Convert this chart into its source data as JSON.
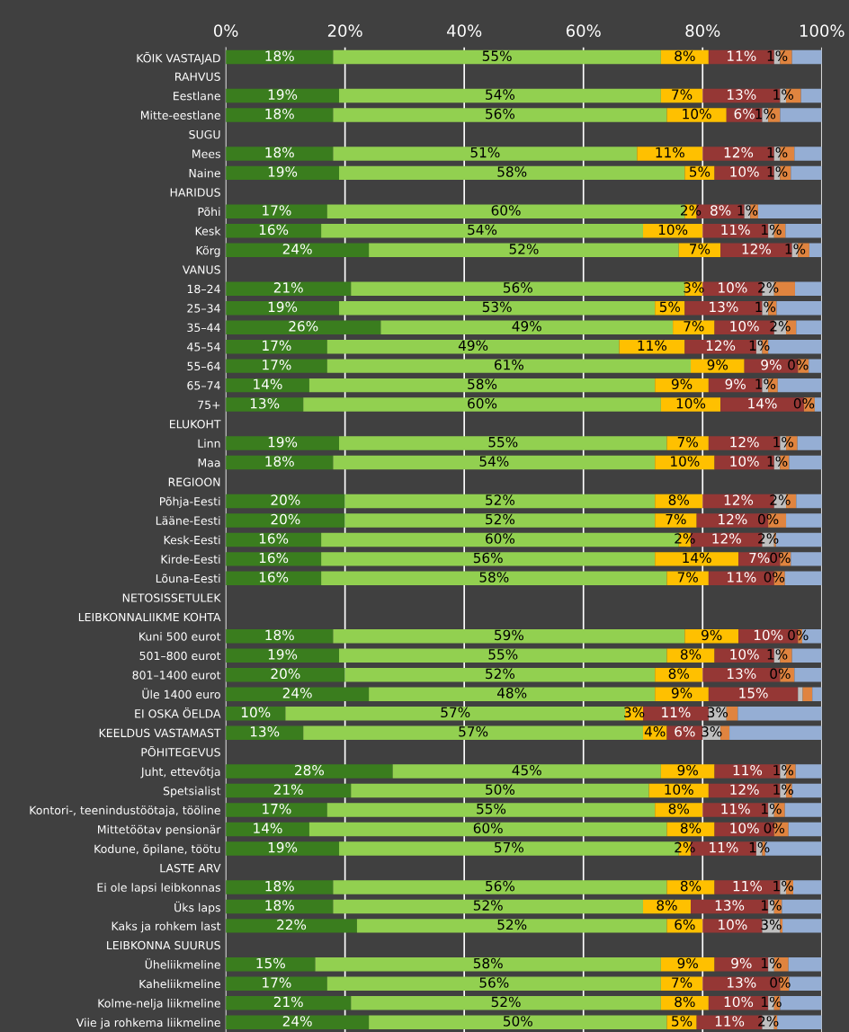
{
  "chart_data": {
    "type": "bar",
    "orientation": "horizontal",
    "stacked": true,
    "grid": "x",
    "categories": [
      "KÕIK VASTAJAD",
      "RAHVUS",
      "Eestlane",
      "Mitte-eestlane",
      "SUGU",
      "Mees",
      "Naine",
      "HARIDUS",
      "Põhi",
      "Kesk",
      "Kõrg",
      "VANUS",
      "18–24",
      "25–34",
      "35–44",
      "45–54",
      "55–64",
      "65–74",
      "75+",
      "ELUKOHT",
      "Linn",
      "Maa",
      "REGIOON",
      "Põhja-Eesti",
      "Lääne-Eesti",
      "Kesk-Eesti",
      "Kirde-Eesti",
      "Lõuna-Eesti",
      "NETOSISSETULEK",
      "LEIBKONNALIIKME KOHTA",
      "Kuni 500 eurot",
      "501–800 eurot",
      "801–1400 eurot",
      "Üle 1400 euro",
      "EI OSKA ÖELDA",
      "KEELDUS VASTAMAST",
      "PÕHITEGEVUS",
      "Juht, ettevõtja",
      "Spetsialist",
      "Kontori-, teenindustöötaja, tööline",
      "Mittetöötav pensionär",
      "Kodune, õpilane, töötu",
      "LASTE ARV",
      "Ei ole lapsi leibkonnas",
      "Üks laps",
      "Kaks ja rohkem last",
      "LEIBKONNA SUURUS",
      "Üheliikmeline",
      "Kaheliikmeline",
      "Kolme-nelja liikmeline",
      "Viie ja rohkema liikmeline"
    ],
    "xlim": [
      0,
      100
    ],
    "xticks": [
      {
        "value": 0,
        "label": "0%"
      },
      {
        "value": 20,
        "label": "20%"
      },
      {
        "value": 40,
        "label": "40%"
      },
      {
        "value": 60,
        "label": "60%"
      },
      {
        "value": 80,
        "label": "80%"
      },
      {
        "value": 100,
        "label": "100%"
      }
    ],
    "series": [
      {
        "color": "#3a7d1e",
        "values": [
          18,
          null,
          19,
          18,
          null,
          18,
          19,
          null,
          17,
          16,
          24,
          null,
          21,
          19,
          26,
          17,
          17,
          14,
          13,
          null,
          19,
          18,
          null,
          20,
          20,
          16,
          16,
          16,
          null,
          null,
          18,
          19,
          20,
          24,
          10,
          13,
          null,
          28,
          21,
          17,
          14,
          19,
          null,
          18,
          18,
          22,
          null,
          15,
          17,
          21,
          24
        ],
        "value_labels": [
          "18%",
          null,
          "19%",
          "18%",
          null,
          "18%",
          "19%",
          null,
          "17%",
          "16%",
          "24%",
          null,
          "21%",
          "19%",
          "26%",
          "17%",
          "17%",
          "14%",
          "13%",
          null,
          "19%",
          "18%",
          null,
          "20%",
          "20%",
          "16%",
          "16%",
          "16%",
          null,
          null,
          "18%",
          "19%",
          "20%",
          "24%",
          "10%",
          "13%",
          null,
          "28%",
          "21%",
          "17%",
          "14%",
          "19%",
          null,
          "18%",
          "18%",
          "22%",
          null,
          "15%",
          "17%",
          "21%",
          "24%"
        ]
      },
      {
        "color": "#92d050",
        "values": [
          55,
          null,
          54,
          56,
          null,
          51,
          58,
          null,
          60,
          54,
          52,
          null,
          56,
          53,
          49,
          49,
          61,
          58,
          60,
          null,
          55,
          54,
          null,
          52,
          52,
          60,
          56,
          58,
          null,
          null,
          59,
          55,
          52,
          48,
          57,
          57,
          null,
          45,
          50,
          55,
          60,
          57,
          null,
          56,
          52,
          52,
          null,
          58,
          56,
          52,
          50
        ],
        "value_labels": [
          "55%",
          null,
          "54%",
          "56%",
          null,
          "51%",
          "58%",
          null,
          "60%",
          "54%",
          "52%",
          null,
          "56%",
          "53%",
          "49%",
          "49%",
          "61%",
          "58%",
          "60%",
          null,
          "55%",
          "54%",
          null,
          "52%",
          "52%",
          "60%",
          "56%",
          "58%",
          null,
          null,
          "59%",
          "55%",
          "52%",
          "48%",
          "57%",
          "57%",
          null,
          "45%",
          "50%",
          "55%",
          "60%",
          "57%",
          null,
          "56%",
          "52%",
          "52%",
          null,
          "58%",
          "56%",
          "52%",
          "50%"
        ]
      },
      {
        "color": "#ffc000",
        "values": [
          8,
          null,
          7,
          10,
          null,
          11,
          5,
          null,
          2,
          10,
          7,
          null,
          3,
          5,
          7,
          11,
          9,
          9,
          10,
          null,
          7,
          10,
          null,
          8,
          7,
          2,
          14,
          7,
          null,
          null,
          9,
          8,
          8,
          9,
          3,
          4,
          null,
          9,
          10,
          8,
          8,
          2,
          null,
          8,
          8,
          6,
          null,
          9,
          7,
          8,
          5
        ],
        "value_labels": [
          "8%",
          null,
          "7%",
          "10%",
          null,
          "11%",
          "5%",
          null,
          "2%",
          "10%",
          "7%",
          null,
          "3%",
          "5%",
          "7%",
          "11%",
          "9%",
          "9%",
          "10%",
          null,
          "7%",
          "10%",
          null,
          "8%",
          "7%",
          "2%",
          "14%",
          "7%",
          null,
          null,
          "9%",
          "8%",
          "8%",
          "9%",
          "3%",
          "4%",
          null,
          "9%",
          "10%",
          "8%",
          "8%",
          "2%",
          null,
          "8%",
          "8%",
          "6%",
          null,
          "9%",
          "7%",
          "8%",
          "5%"
        ]
      },
      {
        "color": "#953735",
        "values": [
          11,
          null,
          13,
          6,
          null,
          12,
          10,
          null,
          8,
          11,
          12,
          null,
          10,
          13,
          10,
          12,
          9,
          9,
          14,
          null,
          12,
          10,
          null,
          12,
          12,
          12,
          7,
          11,
          null,
          null,
          10,
          10,
          13,
          15,
          11,
          6,
          null,
          11,
          12,
          11,
          10,
          11,
          null,
          11,
          13,
          10,
          null,
          9,
          13,
          10,
          11
        ],
        "value_labels": [
          "11%",
          null,
          "13%",
          "6%",
          null,
          "12%",
          "10%",
          null,
          "8%",
          "11%",
          "12%",
          null,
          "10%",
          "13%",
          "10%",
          "12%",
          "9%",
          "9%",
          "14%",
          null,
          "12%",
          "10%",
          null,
          "12%",
          "12%",
          "12%",
          "7%",
          "11%",
          null,
          null,
          "10%",
          "10%",
          "13%",
          "15%",
          "11%",
          "6%",
          null,
          "11%",
          "12%",
          "11%",
          "10%",
          "11%",
          null,
          "11%",
          "13%",
          "10%",
          null,
          "9%",
          "13%",
          "10%",
          "11%"
        ]
      },
      {
        "color": "#bfbfbf",
        "values": [
          1,
          null,
          1,
          1,
          null,
          1,
          1,
          null,
          1,
          1,
          1,
          null,
          2,
          1,
          2,
          1,
          0,
          1,
          0,
          null,
          1,
          1,
          null,
          2,
          0,
          2,
          0,
          0,
          null,
          null,
          0,
          1,
          0,
          0.8,
          3,
          3,
          null,
          1,
          1,
          1,
          0,
          1,
          null,
          1,
          1,
          3,
          null,
          1,
          0,
          1,
          2
        ],
        "value_labels": [
          "1%",
          null,
          "1%",
          "1%",
          null,
          "1%",
          "1%",
          null,
          "1%",
          "1%",
          "1%",
          null,
          "2%",
          "1%",
          "2%",
          "1%",
          "0%",
          "1%",
          "0%",
          null,
          "1%",
          "1%",
          null,
          "2%",
          "0%",
          "2%",
          "0%",
          "0%",
          null,
          null,
          "0%",
          "1%",
          "0%",
          null,
          "3%",
          "3%",
          null,
          "1%",
          "1%",
          "1%",
          "0%",
          "1%",
          null,
          "1%",
          "1%",
          "3%",
          null,
          "1%",
          "0%",
          "1%",
          "2%"
        ]
      },
      {
        "color": "#e0843f",
        "values": [
          2,
          null,
          2.5,
          2,
          null,
          2.4,
          1.8,
          null,
          1.3,
          1.9,
          1.9,
          null,
          3.5,
          1.4,
          1.7,
          1,
          1.8,
          1.6,
          1.8,
          null,
          1.9,
          1.5,
          null,
          1.7,
          3,
          0.3,
          1.8,
          1.8,
          null,
          null,
          0.7,
          2,
          2.4,
          1.6,
          1.9,
          1.5,
          null,
          1.6,
          1,
          1.8,
          2.4,
          0.5,
          null,
          1.2,
          1.3,
          0.4,
          null,
          2.4,
          1.5,
          1,
          0.5
        ]
      },
      {
        "color": "#95aed4",
        "values": [
          5,
          null,
          3.5,
          7,
          null,
          4.6,
          5.2,
          null,
          10.7,
          6.1,
          2.1,
          null,
          4.5,
          7.6,
          4.3,
          9,
          2.2,
          7.4,
          1.2,
          null,
          4.1,
          5.5,
          null,
          4.3,
          6,
          7.7,
          5.2,
          6.2,
          null,
          null,
          3.3,
          5,
          4.6,
          1.6,
          14.1,
          15.5,
          null,
          4.4,
          5,
          6.2,
          5.6,
          9.5,
          null,
          4.8,
          6.7,
          6.6,
          null,
          5.6,
          5.5,
          7,
          7.5
        ]
      }
    ]
  }
}
